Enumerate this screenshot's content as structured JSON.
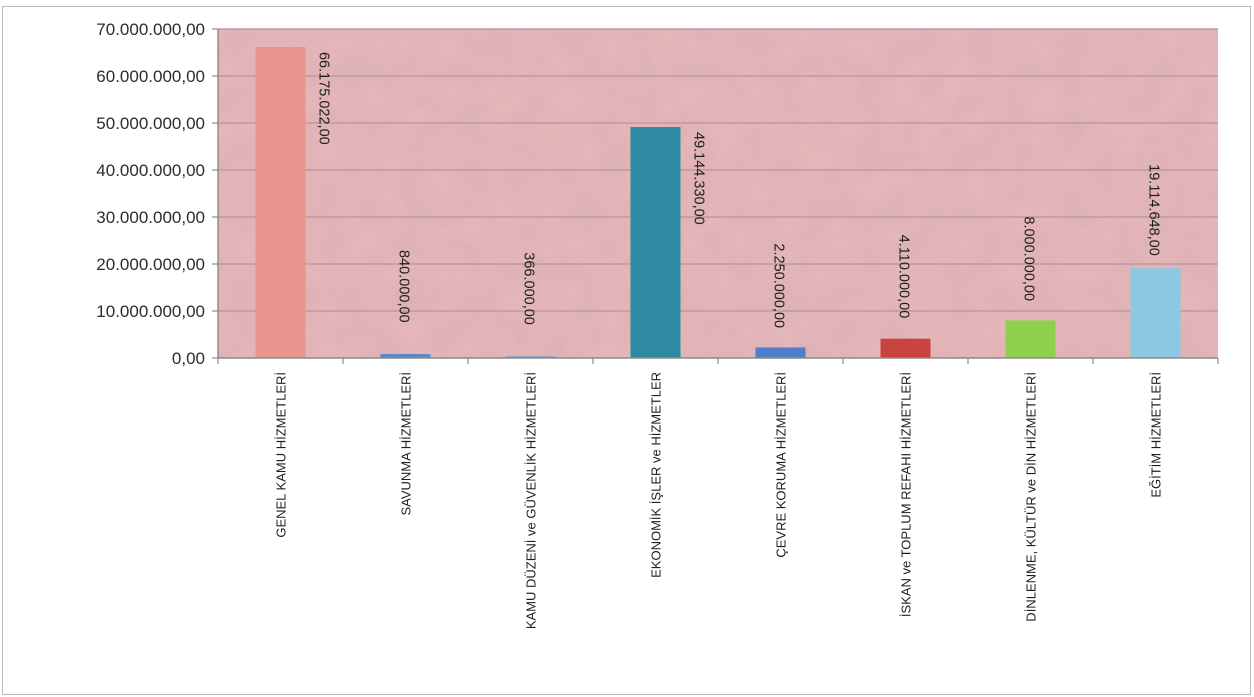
{
  "chart_data": {
    "type": "bar",
    "categories": [
      "GENEL KAMU HİZMETLERİ",
      "SAVUNMA HİZMETLERİ",
      "KAMU DÜZENİ ve GÜVENLİK HİZMETLERİ",
      "EKONOMİK İŞLER ve HİZMETLER",
      "ÇEVRE KORUMA HİZMETLERİ",
      "İSKAN ve TOPLUM REFAHI HİZMETLERİ",
      "DİNLENME, KÜLTÜR ve DİN HİZMETLERİ",
      "EĞİTİM HİZMETLERİ"
    ],
    "values": [
      66175022,
      840000,
      366000,
      49144330,
      2250000,
      4110000,
      8000000,
      19114648
    ],
    "data_labels": [
      "66.175.022,00",
      "840.000,00",
      "366.000,00",
      "49.144.330,00",
      "2.250.000,00",
      "4.110.000,00",
      "8.000.000,00",
      "19.114.648,00"
    ],
    "colors": [
      "#e8948f",
      "#5b87c9",
      "#7e9fd1",
      "#2e8aa3",
      "#4f7fcc",
      "#c8443f",
      "#8fd14f",
      "#8cc8e0"
    ],
    "ylim": [
      0,
      70000000
    ],
    "yticks": [
      0,
      10000000,
      20000000,
      30000000,
      40000000,
      50000000,
      60000000,
      70000000
    ],
    "ytick_labels": [
      "0,00",
      "10.000.000,00",
      "20.000.000,00",
      "30.000.000,00",
      "40.000.000,00",
      "50.000.000,00",
      "60.000.000,00",
      "70.000.000,00"
    ],
    "title": "",
    "xlabel": "",
    "ylabel": "",
    "grid": true,
    "legend": "none",
    "plot_background": "#e7b8bb",
    "gridline_color": "#b89ca0"
  }
}
